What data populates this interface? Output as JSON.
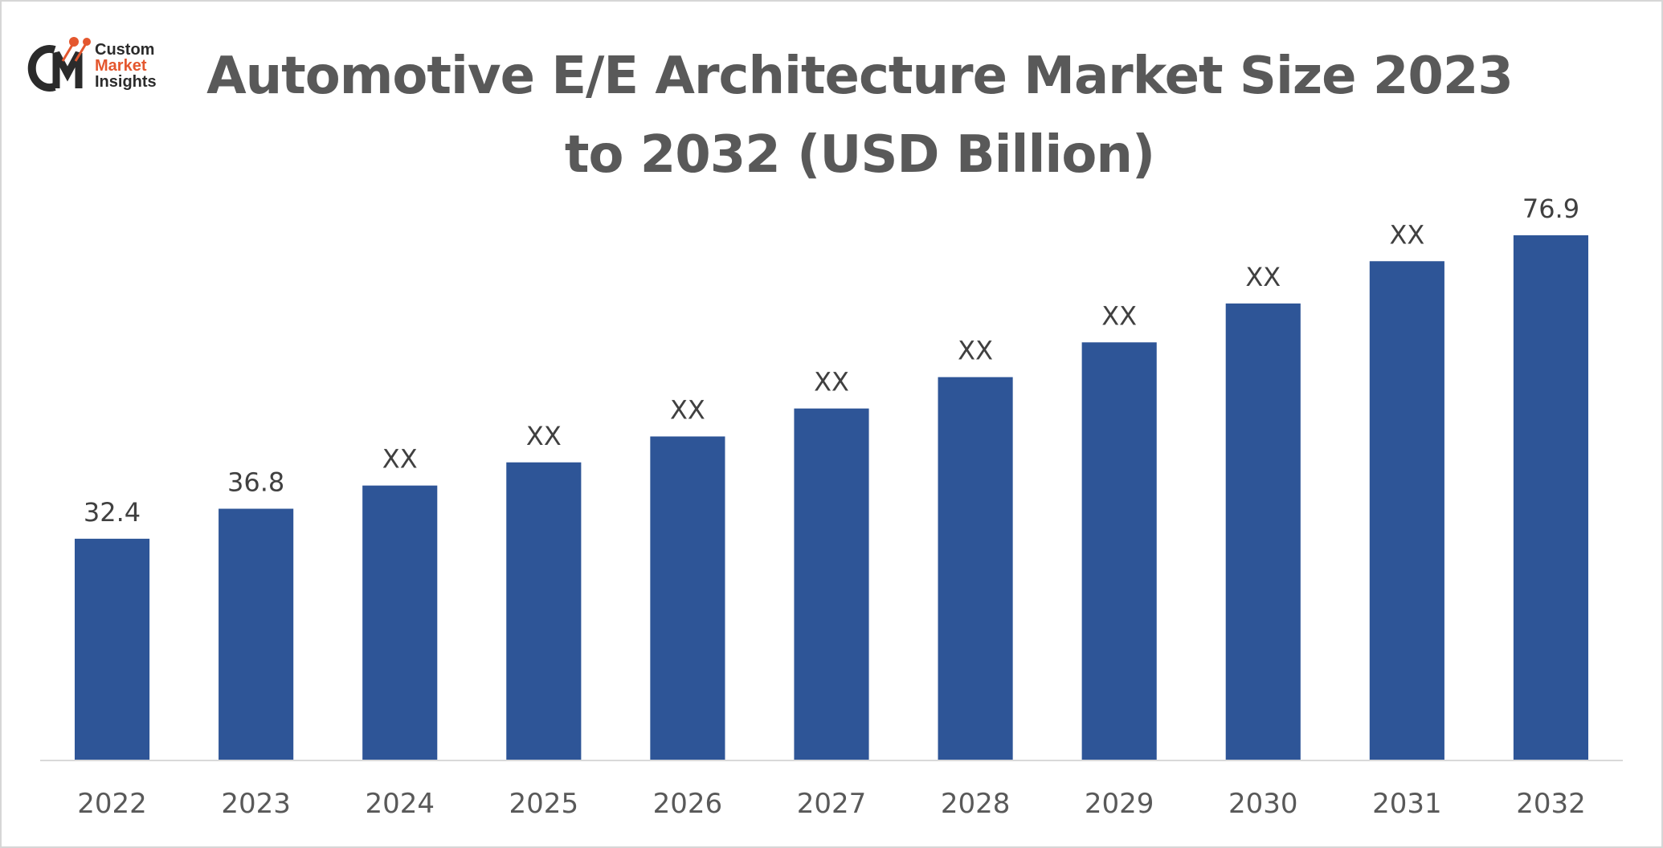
{
  "logo": {
    "mark_text": "CMI",
    "line1": "Custom",
    "line2": "Market",
    "line3": "Insights"
  },
  "chart_data": {
    "type": "bar",
    "title": "Automotive E/E Architecture Market Size 2023 to 2032 (USD Billion)",
    "categories": [
      "2022",
      "2023",
      "2024",
      "2025",
      "2026",
      "2027",
      "2028",
      "2029",
      "2030",
      "2031",
      "2032"
    ],
    "values": [
      32.4,
      36.8,
      40.2,
      43.6,
      47.4,
      51.5,
      56.1,
      61.2,
      66.9,
      73.1,
      76.9
    ],
    "data_labels": [
      "32.4",
      "36.8",
      "XX",
      "XX",
      "XX",
      "XX",
      "XX",
      "XX",
      "XX",
      "XX",
      "76.9"
    ],
    "xlabel": "",
    "ylabel": "",
    "ylim": [
      0,
      78
    ],
    "grid": false,
    "legend": "none",
    "colors": {
      "bar": "#2e5597",
      "axis": "#d9d9d9",
      "label": "#404040",
      "tick": "#595959"
    }
  }
}
